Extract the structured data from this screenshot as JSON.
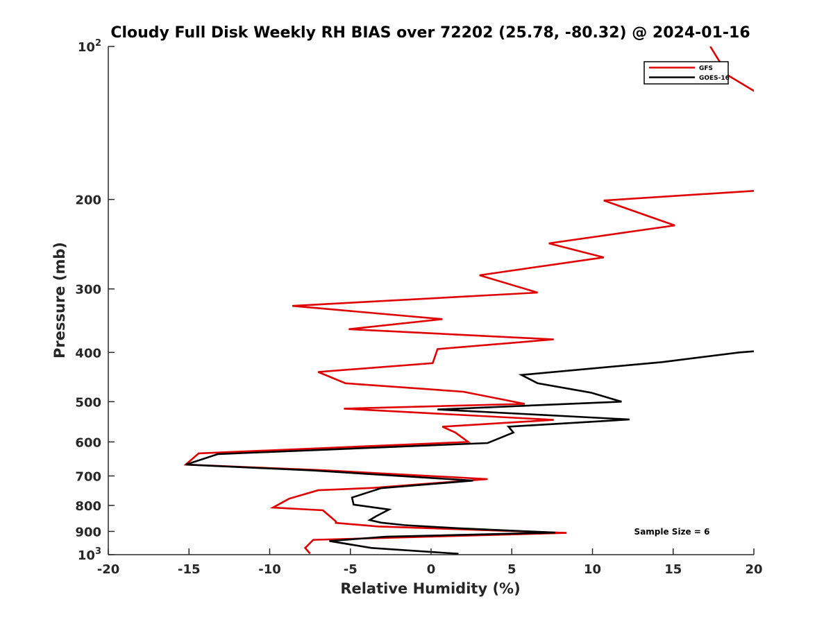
{
  "chart_data": {
    "type": "line",
    "title": "Cloudy Full Disk Weekly RH BIAS over 72202 (25.78, -80.32) @ 2024-01-16",
    "xlabel": "Relative Humidity (%)",
    "ylabel": "Pressure (mb)",
    "xlim": [
      -20,
      20
    ],
    "ylim": [
      100,
      1000
    ],
    "yscale": "log",
    "y_reversed": true,
    "grid": false,
    "legend_position": "top-right",
    "x_ticks": [
      "-20",
      "-15",
      "-10",
      "-5",
      "0",
      "5",
      "10",
      "15",
      "20"
    ],
    "y_ticks": [
      {
        "value": 100,
        "base": "10",
        "exp": "2"
      },
      {
        "value": 200,
        "label": "200"
      },
      {
        "value": 300,
        "label": "300"
      },
      {
        "value": 400,
        "label": "400"
      },
      {
        "value": 500,
        "label": "500"
      },
      {
        "value": 600,
        "label": "600"
      },
      {
        "value": 700,
        "label": "700"
      },
      {
        "value": 800,
        "label": "800"
      },
      {
        "value": 900,
        "label": "900"
      },
      {
        "value": 1000,
        "base": "10",
        "exp": "3"
      }
    ],
    "series": [
      {
        "name": "GFS",
        "color": "#e00000",
        "points": [
          [
            17.3,
            100
          ],
          [
            18.4,
            114
          ],
          [
            20.5,
            125
          ],
          [
            20.4,
            192
          ],
          [
            10.7,
            201
          ],
          [
            15.1,
            225
          ],
          [
            7.3,
            244
          ],
          [
            10.7,
            260
          ],
          [
            3.0,
            282
          ],
          [
            6.6,
            305
          ],
          [
            -8.6,
            324
          ],
          [
            0.7,
            344
          ],
          [
            -5.1,
            360
          ],
          [
            7.6,
            377
          ],
          [
            0.4,
            394
          ],
          [
            0.1,
            420
          ],
          [
            -7.0,
            437
          ],
          [
            -5.3,
            460
          ],
          [
            2.0,
            478
          ],
          [
            5.8,
            505
          ],
          [
            -5.4,
            516
          ],
          [
            7.6,
            543
          ],
          [
            0.7,
            560
          ],
          [
            1.5,
            575
          ],
          [
            2.3,
            600
          ],
          [
            -14.4,
            632
          ],
          [
            -15.2,
            665
          ],
          [
            -6.7,
            682
          ],
          [
            3.5,
            710
          ],
          [
            -3.6,
            739
          ],
          [
            -7.0,
            747
          ],
          [
            -8.8,
            776
          ],
          [
            -9.8,
            808
          ],
          [
            -6.7,
            818
          ],
          [
            -5.9,
            860
          ],
          [
            -5.9,
            866
          ],
          [
            -3.3,
            880
          ],
          [
            8.4,
            906
          ],
          [
            -7.3,
            935
          ],
          [
            -7.8,
            970
          ],
          [
            -7.5,
            995
          ]
        ]
      },
      {
        "name": "GOES-16",
        "color": "#000000",
        "points": [
          [
            20.0,
            398
          ],
          [
            19.1,
            400
          ],
          [
            14.3,
            418
          ],
          [
            5.6,
            443
          ],
          [
            6.6,
            460
          ],
          [
            9.9,
            480
          ],
          [
            11.8,
            500
          ],
          [
            0.4,
            518
          ],
          [
            12.3,
            542
          ],
          [
            4.8,
            560
          ],
          [
            5.1,
            575
          ],
          [
            3.5,
            603
          ],
          [
            -13.2,
            634
          ],
          [
            -15.2,
            665
          ],
          [
            -7.3,
            683
          ],
          [
            2.6,
            715
          ],
          [
            -3.1,
            740
          ],
          [
            -4.9,
            772
          ],
          [
            -4.8,
            797
          ],
          [
            -2.6,
            815
          ],
          [
            -3.4,
            840
          ],
          [
            -3.8,
            855
          ],
          [
            -3.1,
            865
          ],
          [
            -1.6,
            875
          ],
          [
            1.6,
            887
          ],
          [
            7.7,
            905
          ],
          [
            -2.8,
            922
          ],
          [
            -6.3,
            940
          ],
          [
            -3.7,
            970
          ],
          [
            1.7,
            996
          ]
        ]
      }
    ],
    "annotations": [
      "Sample Size = 6"
    ]
  }
}
